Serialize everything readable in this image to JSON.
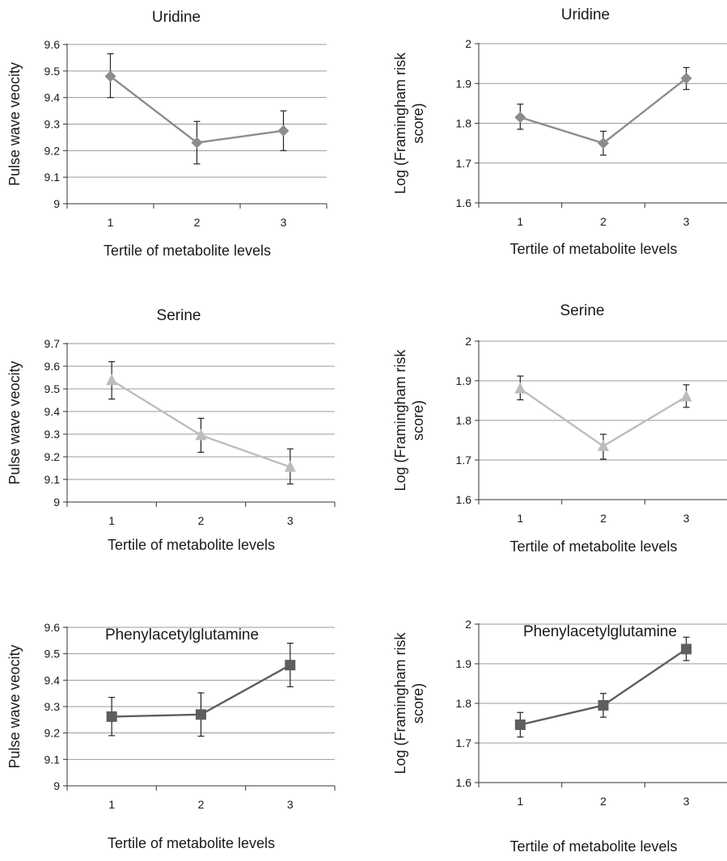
{
  "chart_data": [
    {
      "id": "pwv-uridine",
      "type": "line",
      "title": "Uridine",
      "xlabel": "Tertile of metabolite levels",
      "ylabel": [
        "Pulse wave veocity"
      ],
      "categories": [
        "1",
        "2",
        "3"
      ],
      "ylim": [
        9,
        9.6
      ],
      "yticks": [
        "9",
        "9.1",
        "9.2",
        "9.3",
        "9.4",
        "9.5",
        "9.6"
      ],
      "grid": "horizontal",
      "marker": "diamond",
      "color": "#8c8c8c",
      "series": [
        {
          "values": [
            9.48,
            9.23,
            9.275
          ],
          "err_low": [
            9.4,
            9.15,
            9.2
          ],
          "err_high": [
            9.565,
            9.31,
            9.35
          ]
        }
      ]
    },
    {
      "id": "fram-uridine",
      "type": "line",
      "title": "Uridine",
      "xlabel": "Tertile of metabolite levels",
      "ylabel": [
        "Log (Framingham risk",
        "score)"
      ],
      "categories": [
        "1",
        "2",
        "3"
      ],
      "ylim": [
        1.6,
        2
      ],
      "yticks": [
        "1.6",
        "1.7",
        "1.8",
        "1.9",
        "2"
      ],
      "grid": "horizontal",
      "marker": "diamond",
      "color": "#8c8c8c",
      "series": [
        {
          "values": [
            1.815,
            1.75,
            1.913
          ],
          "err_low": [
            1.785,
            1.72,
            1.885
          ],
          "err_high": [
            1.848,
            1.78,
            1.94
          ]
        }
      ]
    },
    {
      "id": "pwv-serine",
      "type": "line",
      "title": "Serine",
      "xlabel": "Tertile of metabolite levels",
      "ylabel": [
        "Pulse wave veocity"
      ],
      "categories": [
        "1",
        "2",
        "3"
      ],
      "ylim": [
        9,
        9.7
      ],
      "yticks": [
        "9",
        "9.1",
        "9.2",
        "9.3",
        "9.4",
        "9.5",
        "9.6",
        "9.7"
      ],
      "grid": "horizontal",
      "marker": "triangle",
      "color": "#bdbdbd",
      "series": [
        {
          "values": [
            9.538,
            9.295,
            9.155
          ],
          "err_low": [
            9.455,
            9.22,
            9.08
          ],
          "err_high": [
            9.62,
            9.37,
            9.235
          ]
        }
      ]
    },
    {
      "id": "fram-serine",
      "type": "line",
      "title": "Serine",
      "xlabel": "Tertile of metabolite levels",
      "ylabel": [
        "Log (Framingham risk",
        "score)"
      ],
      "categories": [
        "1",
        "2",
        "3"
      ],
      "ylim": [
        1.6,
        2
      ],
      "yticks": [
        "1.6",
        "1.7",
        "1.8",
        "1.9",
        "2"
      ],
      "grid": "horizontal",
      "marker": "triangle",
      "color": "#bdbdbd",
      "series": [
        {
          "values": [
            1.88,
            1.735,
            1.86
          ],
          "err_low": [
            1.852,
            1.702,
            1.833
          ],
          "err_high": [
            1.912,
            1.765,
            1.89
          ]
        }
      ]
    },
    {
      "id": "pwv-phenyl",
      "type": "line",
      "title": "Phenylacetylglutamine",
      "xlabel": "Tertile of metabolite levels",
      "ylabel": [
        "Pulse wave veocity"
      ],
      "categories": [
        "1",
        "2",
        "3"
      ],
      "ylim": [
        9,
        9.6
      ],
      "yticks": [
        "9",
        "9.1",
        "9.2",
        "9.3",
        "9.4",
        "9.5",
        "9.6"
      ],
      "grid": "horizontal",
      "marker": "square",
      "color": "#5e5e5e",
      "series": [
        {
          "values": [
            9.262,
            9.27,
            9.457
          ],
          "err_low": [
            9.19,
            9.188,
            9.375
          ],
          "err_high": [
            9.335,
            9.352,
            9.54
          ]
        }
      ]
    },
    {
      "id": "fram-phenyl",
      "type": "line",
      "title": "Phenylacetylglutamine",
      "xlabel": "Tertile of metabolite levels",
      "ylabel": [
        "Log (Framingham risk",
        "score)"
      ],
      "categories": [
        "1",
        "2",
        "3"
      ],
      "ylim": [
        1.6,
        2
      ],
      "yticks": [
        "1.6",
        "1.7",
        "1.8",
        "1.9",
        "2"
      ],
      "grid": "horizontal",
      "marker": "square",
      "color": "#5e5e5e",
      "series": [
        {
          "values": [
            1.746,
            1.795,
            1.937
          ],
          "err_low": [
            1.715,
            1.765,
            1.908
          ],
          "err_high": [
            1.777,
            1.825,
            1.967
          ]
        }
      ]
    }
  ]
}
